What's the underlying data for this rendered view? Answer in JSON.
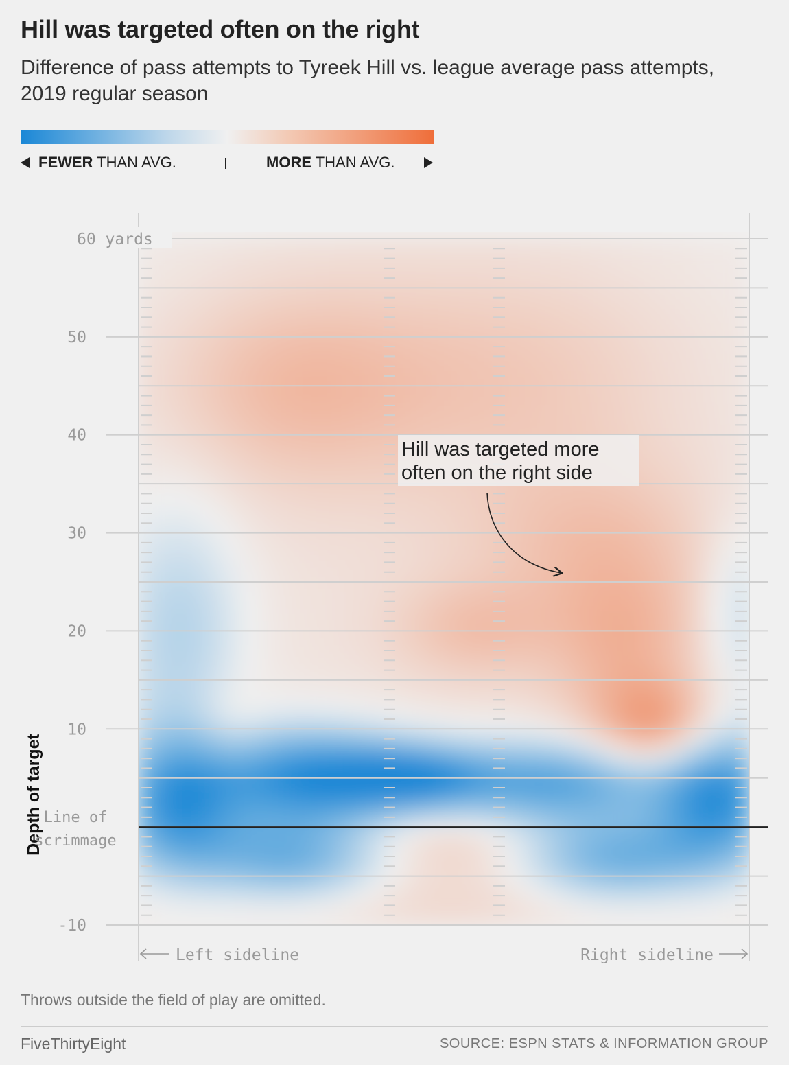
{
  "title": "Hill was targeted often on the right",
  "subtitle": "Difference of pass attempts to Tyreek Hill vs. league average pass attempts, 2019 regular season",
  "legend": {
    "fewer_bold": "FEWER",
    "fewer_rest": "THAN AVG.",
    "more_bold": "MORE",
    "more_rest": "THAN AVG.",
    "colors": {
      "fewer": "#1a87d6",
      "neutral": "#f0f0f0",
      "more": "#ef6e3a"
    }
  },
  "chart_data": {
    "type": "heatmap",
    "ylabel": "Depth of target",
    "y_ticks": [
      {
        "value": 60,
        "label": "60 yards"
      },
      {
        "value": 50,
        "label": "50"
      },
      {
        "value": 40,
        "label": "40"
      },
      {
        "value": 30,
        "label": "30"
      },
      {
        "value": 20,
        "label": "20"
      },
      {
        "value": 10,
        "label": "10"
      },
      {
        "value": -10,
        "label": "-10"
      }
    ],
    "ylim": [
      -10,
      60
    ],
    "line_of_scrimmage": {
      "value": 0,
      "label_line1": "Line of",
      "label_line2": "scrimmage"
    },
    "x_labels": {
      "left": "Left sideline",
      "right": "Right sideline"
    },
    "annotation": {
      "line1": "Hill was targeted more",
      "line2": "often on the right side"
    },
    "grid": true,
    "cells_note": "difference (-1 fewer … +1 more) across field width 0 (left sideline) to 1 (right sideline)",
    "blobs": [
      {
        "x": 0.28,
        "y": 5,
        "rx": 0.12,
        "ry": 3.5,
        "v": -1.0
      },
      {
        "x": 0.45,
        "y": 5,
        "rx": 0.08,
        "ry": 2.2,
        "v": -0.7
      },
      {
        "x": 0.68,
        "y": 4.5,
        "rx": 0.14,
        "ry": 3,
        "v": -0.8
      },
      {
        "x": 0.95,
        "y": 3,
        "rx": 0.07,
        "ry": 5,
        "v": -0.9
      },
      {
        "x": 0.06,
        "y": 2,
        "rx": 0.07,
        "ry": 5,
        "v": -0.8
      },
      {
        "x": 0.25,
        "y": -3.5,
        "rx": 0.11,
        "ry": 3,
        "v": -0.7
      },
      {
        "x": 0.78,
        "y": -3.5,
        "rx": 0.11,
        "ry": 3,
        "v": -0.7
      },
      {
        "x": 0.07,
        "y": 20,
        "rx": 0.07,
        "ry": 9,
        "v": -0.35
      },
      {
        "x": 0.98,
        "y": 22,
        "rx": 0.04,
        "ry": 6,
        "v": -0.25
      },
      {
        "x": 0.85,
        "y": 10,
        "rx": 0.07,
        "ry": 3.2,
        "v": 0.55
      },
      {
        "x": 0.8,
        "y": 18,
        "rx": 0.09,
        "ry": 6,
        "v": 0.35
      },
      {
        "x": 0.55,
        "y": 20,
        "rx": 0.09,
        "ry": 3.5,
        "v": 0.25
      },
      {
        "x": 0.75,
        "y": 29,
        "rx": 0.14,
        "ry": 6,
        "v": 0.25
      },
      {
        "x": 0.25,
        "y": 45,
        "rx": 0.15,
        "ry": 7,
        "v": 0.3
      },
      {
        "x": 0.6,
        "y": 46,
        "rx": 0.2,
        "ry": 8,
        "v": 0.2
      },
      {
        "x": 0.5,
        "y": -1.5,
        "rx": 0.12,
        "ry": 2.2,
        "v": 0.2
      },
      {
        "x": 0.15,
        "y": 10,
        "rx": 0.04,
        "ry": 3,
        "v": 0.15
      },
      {
        "x": 0.5,
        "y": 30,
        "rx": 0.45,
        "ry": 30,
        "v": 0.12
      },
      {
        "x": 0.5,
        "y": -7,
        "rx": 0.5,
        "ry": 3,
        "v": 0.15
      }
    ]
  },
  "footnote": "Throws outside the field of play are omitted.",
  "brand": "FiveThirtyEight",
  "source": "SOURCE: ESPN STATS & INFORMATION GROUP"
}
